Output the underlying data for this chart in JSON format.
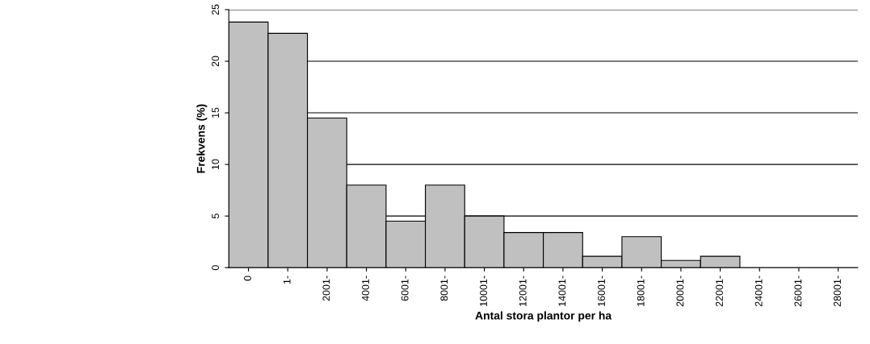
{
  "chart_data": {
    "type": "bar",
    "xlabel": "Antal stora plantor per ha",
    "ylabel": "Frekvens (%)",
    "categories": [
      "0",
      "1-",
      "2001-",
      "4001-",
      "6001-",
      "8001-",
      "10001-",
      "12001-",
      "14001-",
      "16001-",
      "18001-",
      "20001-",
      "22001-",
      "24001-",
      "26001-",
      "28001-"
    ],
    "values": [
      23.8,
      22.7,
      14.5,
      8.0,
      4.5,
      8.0,
      5.0,
      3.4,
      3.4,
      1.1,
      3.0,
      0.7,
      1.1,
      0,
      0,
      0
    ],
    "color": "#c0c0c0",
    "ylim": [
      0,
      25
    ],
    "yticks": [
      0,
      5,
      10,
      15,
      20,
      25
    ],
    "grid": "y"
  }
}
